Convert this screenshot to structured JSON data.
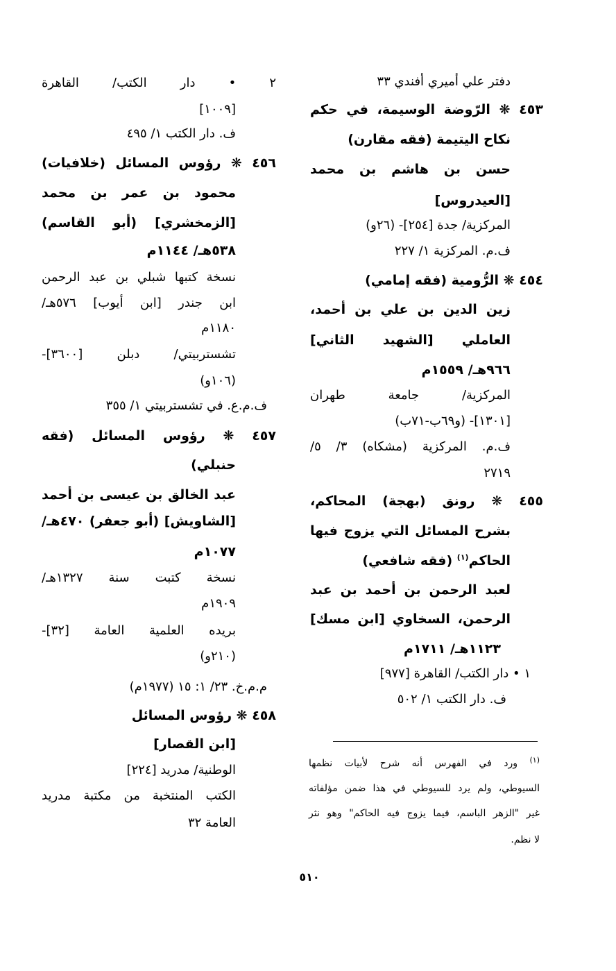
{
  "right_column": {
    "lines": [
      "دفتر علي أميري أفندي ٣٣",
      "٤٥٣ ❋ الرّوضة الوسيمة، في حكم",
      "نكاح اليتيمة    (فقه مقارن)",
      "حسن بن هاشم بن محمد",
      "[العيدروس]",
      "المركزية/ جدة [٢٥٤]- (٢٦و)",
      "ف.م. المركزية ١/ ٢٢٧",
      "٤٥٤ ❋ الرُّومية   (فقه إمامي)",
      "زين الدين بن علي بن أحمد،",
      "العاملي [الشهيد الثاني]",
      "٩٦٦هـ/ ١٥٥٩م",
      "المركزية/ جامعة طهران",
      "[١٣٠١]- (و٦٩ب-٧١ب)",
      "ف.م. المركزية (مشكاه) ٣/ ٥/",
      "٢٧١٩",
      "٤٥٥ ❋ رونق (بهجة) المحاكم،",
      "بشرح المسائل التي يزوج فيها",
      "الحاكم(١)   (فقه شافعي)",
      "لعبد الرحمن  بن أحمد بن عبد",
      "الرحمن، السخاوي  [ابن مسك]",
      "١١٢٣هـ/ ١٧١١م",
      "١ • دار الكتب/ القاهرة [٩٧٧]",
      "ف. دار الكتب ١/ ٥٠٢"
    ]
  },
  "left_column": {
    "lines": [
      "٢ • دار الكتب/ القاهرة",
      "[١٠٠٩]",
      "ف. دار الكتب ١/ ٤٩٥",
      "٤٥٦ ❋ رؤوس المسائل   (خلافيات)",
      "محمود بن عمر بن محمد",
      "[الزمخشري] (أبو القاسم)",
      "٥٣٨هـ/ ١١٤٤م",
      "نسخة كتبها شبلي بن عبد الرحمن",
      "ابن جندر [ابن أيوب] ٥٧٦هـ/",
      "١١٨٠م",
      "تشستربيتي/ دبلن [٣٦٠٠]-",
      "(١٠٦و)",
      "ف.م.ع. في تشستربيتي ١/ ٣٥٥",
      "٤٥٧ ❋ رؤوس المسائل   (فقه",
      "حنبلي)",
      "عبد الخالق بن عيسى بن أحمد",
      "[الشاويش] (أبو جعفر) ٤٧٠هـ/",
      "١٠٧٧م",
      "نسخة كتبت سنة ١٣٢٧هـ/",
      "١٩٠٩م",
      "بريده العلمية العامة [٣٢]-",
      "(٢١٠و)",
      "م.م.خ. ٢٣/ ١: ١٥ (١٩٧٧م)",
      "٤٥٨ ❋ رؤوس المسائل",
      "[ابن القصار]",
      "الوطنية/ مدريد [٢٢٤]",
      "الكتب المنتخبة من مكتبة مدريد",
      "العامة ٣٢"
    ]
  },
  "footnote": {
    "lines": [
      "(١) ورد في الفهرس أنه شرح لأبيات نظمها",
      "السيوطي، ولم يرد للسيوطي في هذا ضمن مؤلفاته",
      "غير \"الزهر الباسم، فيما يزوج فيه الحاكم\" وهو نثر",
      "لا نظم."
    ]
  },
  "page_number": "٥١٠"
}
